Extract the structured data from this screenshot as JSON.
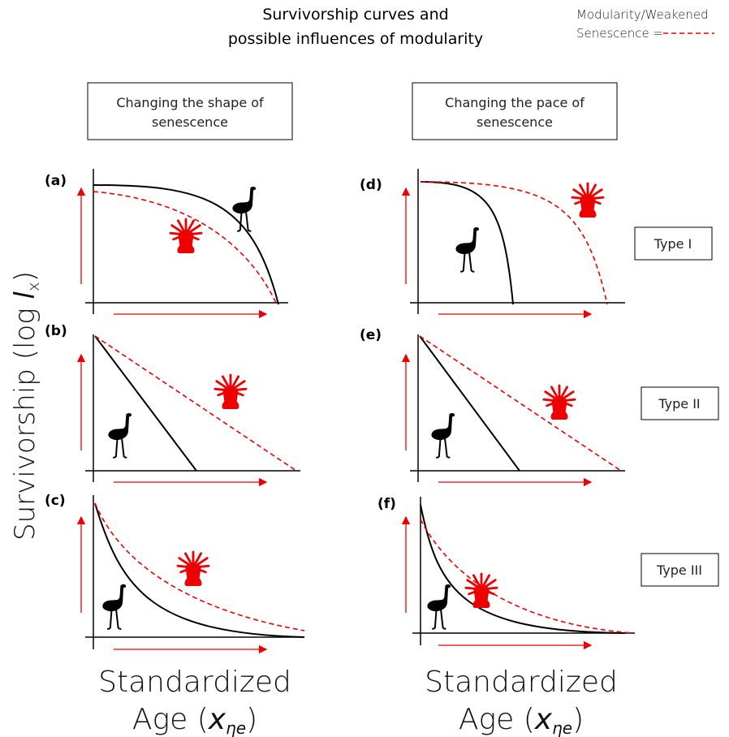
{
  "header": {
    "title": [
      "Survivorship curves and",
      "possible influences of modularity"
    ],
    "legend": [
      "Modularity/Weakened",
      "Senescence ="
    ]
  },
  "columns": [
    {
      "label": [
        "Changing the shape of",
        "senescence"
      ]
    },
    {
      "label": [
        "Changing the pace of",
        "senescence"
      ]
    }
  ],
  "panels": [
    "(a)",
    "(b)",
    "(c)",
    "(d)",
    "(e)",
    "(f)"
  ],
  "types": [
    "Type I",
    "Type II",
    "Type III"
  ],
  "y_axis": [
    "Survivorship (log ",
    "l",
    "x",
    ")"
  ],
  "x_axis": {
    "line1": "Standardized",
    "line2": [
      "Age (",
      "x",
      "ηe",
      ")"
    ]
  }
}
